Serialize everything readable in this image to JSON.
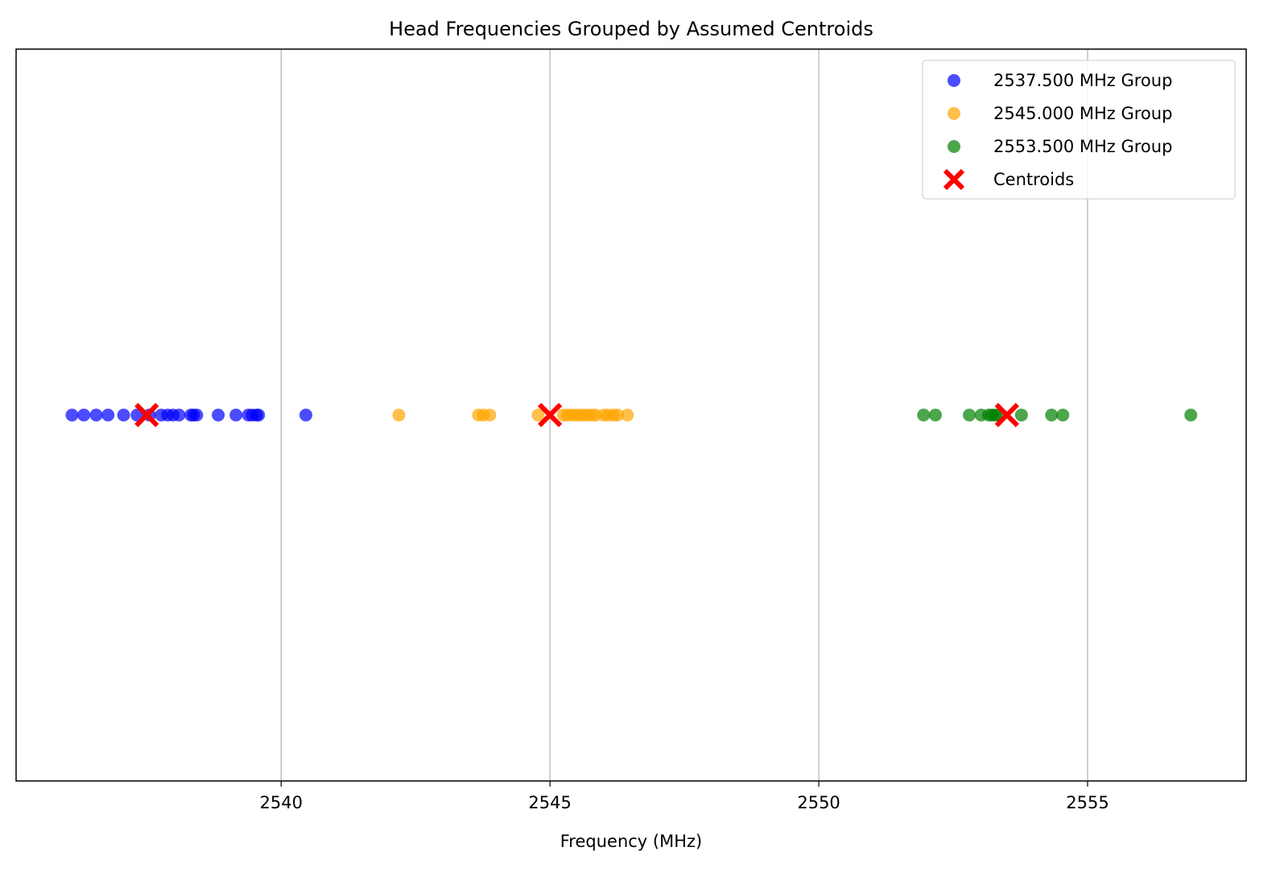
{
  "chart_data": {
    "type": "scatter",
    "title": "Head Frequencies Grouped by Assumed Centroids",
    "xlabel": "Frequency (MHz)",
    "ylabel": "",
    "xlim": [
      2535.07,
      2557.95
    ],
    "ylim": [
      -0.05,
      0.05
    ],
    "xticks": [
      2540,
      2545,
      2550,
      2555
    ],
    "grid": "vertical",
    "legend_position": "top-right",
    "series": [
      {
        "name": "2537.500 MHz Group",
        "color": "#0000ff",
        "x": [
          2536.11,
          2536.33,
          2536.56,
          2536.78,
          2537.07,
          2537.32,
          2537.55,
          2537.77,
          2537.89,
          2537.99,
          2538.1,
          2538.32,
          2538.37,
          2538.43,
          2538.83,
          2539.16,
          2539.39,
          2539.46,
          2539.54,
          2539.58,
          2540.46
        ]
      },
      {
        "name": "2545.000 MHz Group",
        "color": "#ffa500",
        "x": [
          2542.19,
          2543.67,
          2543.76,
          2543.88,
          2544.78,
          2545.25,
          2545.32,
          2545.4,
          2545.48,
          2545.55,
          2545.62,
          2545.7,
          2545.78,
          2545.85,
          2546.0,
          2546.08,
          2546.18,
          2546.26,
          2546.44
        ]
      },
      {
        "name": "2553.500 MHz Group",
        "color": "#008000",
        "x": [
          2551.95,
          2552.17,
          2552.8,
          2553.02,
          2553.16,
          2553.22,
          2553.28,
          2553.34,
          2553.77,
          2554.33,
          2554.54,
          2556.92
        ]
      }
    ],
    "centroids": {
      "name": "Centroids",
      "color": "#ff0000",
      "x": [
        2537.5,
        2545.0,
        2553.5
      ]
    }
  }
}
